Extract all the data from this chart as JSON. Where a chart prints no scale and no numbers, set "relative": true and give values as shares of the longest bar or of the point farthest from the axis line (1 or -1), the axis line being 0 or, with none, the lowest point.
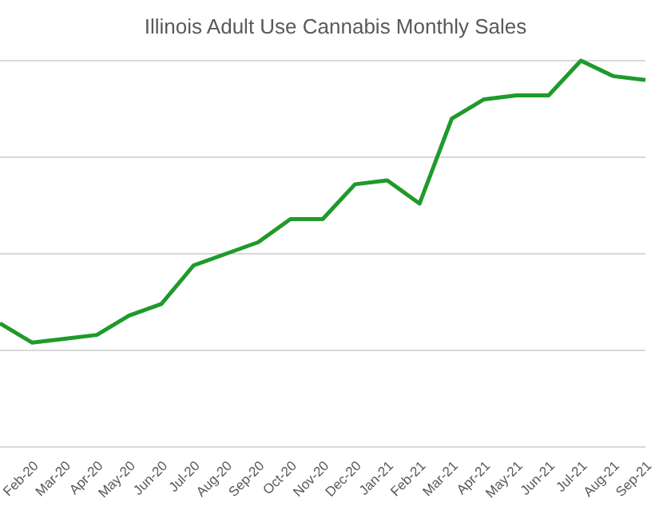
{
  "chart_data": {
    "type": "line",
    "title": "Illinois Adult Use Cannabis Monthly Sales",
    "categories": [
      null,
      "Feb-20",
      "Mar-20",
      "Apr-20",
      "May-20",
      "Jun-20",
      "Jul-20",
      "Aug-20",
      "Sep-20",
      "Oct-20",
      "Nov-20",
      "Dec-20",
      "Jan-21",
      "Feb-21",
      "Mar-21",
      "Apr-21",
      "May-21",
      "Jun-21",
      "Jul-21",
      "Aug-21",
      "Sep-21"
    ],
    "series": [
      {
        "color": "#1f9a2b",
        "values": [
          0.32,
          0.27,
          0.28,
          0.29,
          0.34,
          0.37,
          0.47,
          0.5,
          0.53,
          0.59,
          0.59,
          0.68,
          0.69,
          0.63,
          0.85,
          0.9,
          0.91,
          0.91,
          1,
          0.96,
          0.95
        ]
      }
    ],
    "relative": true,
    "grid": "y",
    "legend": false,
    "marker": "none",
    "line_style": "solid"
  }
}
